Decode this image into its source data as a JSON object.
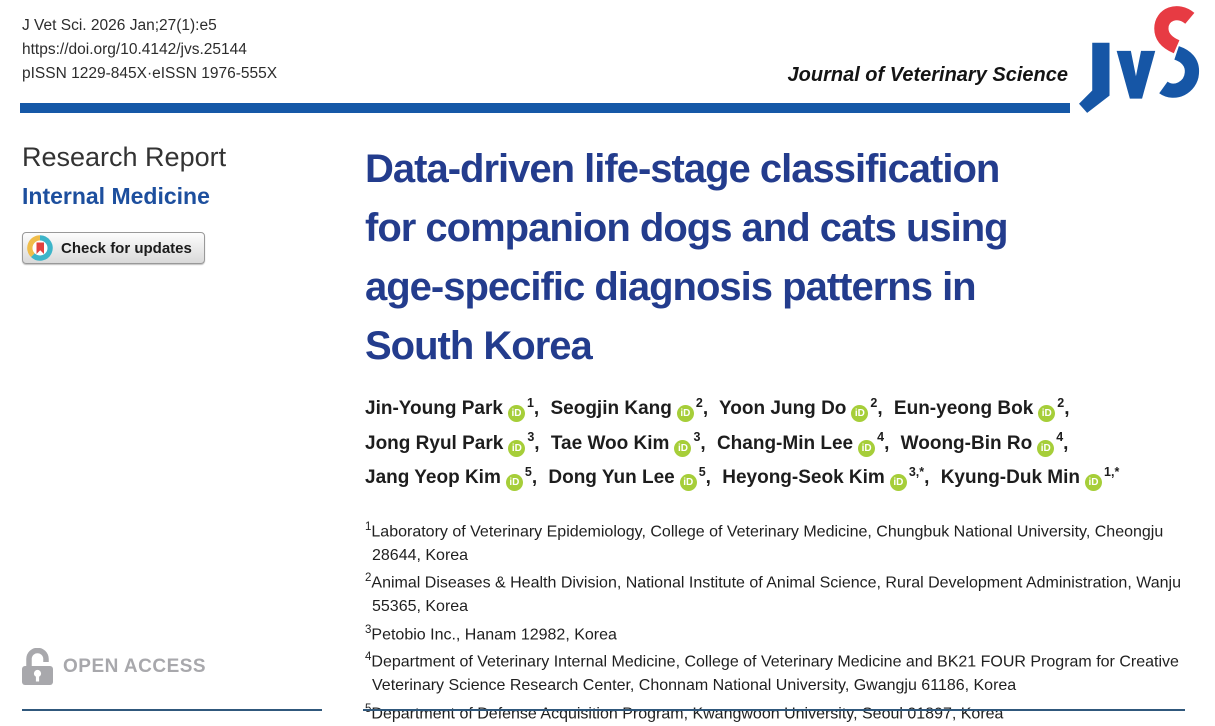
{
  "header": {
    "citation": "J Vet Sci. 2026 Jan;27(1):e5",
    "doi": "https://doi.org/10.4142/jvs.25144",
    "issn": "pISSN 1229-845X·eISSN 1976-555X",
    "journal_name": "Journal of Veterinary Science",
    "logo_text": "JVS"
  },
  "left": {
    "article_type": "Research Report",
    "section": "Internal Medicine",
    "crossmark_label": "Check for updates",
    "open_access_label": "OPEN ACCESS"
  },
  "icons": {
    "orcid_label": "iD"
  },
  "article": {
    "title": "Data-driven life-stage classification for companion dogs and cats using age-specific diagnosis patterns in South Korea",
    "title_lines": [
      "Data-driven life-stage classification",
      "for companion dogs and cats using",
      "age-specific diagnosis patterns in",
      "South Korea"
    ],
    "authors": [
      {
        "name": "Jin-Young Park",
        "sup": "1"
      },
      {
        "name": "Seogjin Kang",
        "sup": "2"
      },
      {
        "name": "Yoon Jung Do",
        "sup": "2"
      },
      {
        "name": "Eun-yeong Bok",
        "sup": "2",
        "break_after": true
      },
      {
        "name": "Jong Ryul Park",
        "sup": "3"
      },
      {
        "name": "Tae Woo Kim",
        "sup": "3"
      },
      {
        "name": "Chang-Min Lee",
        "sup": "4"
      },
      {
        "name": "Woong-Bin Ro",
        "sup": "4",
        "break_after": true
      },
      {
        "name": "Jang Yeop Kim",
        "sup": "5"
      },
      {
        "name": "Dong Yun Lee",
        "sup": "5"
      },
      {
        "name": "Heyong-Seok Kim",
        "sup": "3,*"
      },
      {
        "name": "Kyung-Duk Min",
        "sup": "1,*"
      }
    ],
    "affiliations": [
      {
        "sup": "1",
        "text": "Laboratory of Veterinary Epidemiology, College of Veterinary Medicine, Chungbuk National University, Cheongju 28644, Korea"
      },
      {
        "sup": "2",
        "text": "Animal Diseases & Health Division, National Institute of Animal Science, Rural Development Administration, Wanju 55365, Korea"
      },
      {
        "sup": "3",
        "text": "Petobio Inc., Hanam 12982, Korea"
      },
      {
        "sup": "4",
        "text": "Department of Veterinary Internal Medicine, College of Veterinary Medicine and BK21 FOUR Program for Creative Veterinary Science Research Center, Chonnam National University, Gwangju 61186, Korea"
      },
      {
        "sup": "5",
        "text": "Department of Defense Acquisition Program, Kwangwoon University, Seoul 01897, Korea"
      }
    ]
  },
  "colors": {
    "header_bar": "#1558a7",
    "title_blue": "#233c8d",
    "section_blue": "#1d4f9e",
    "orcid_green": "#a6ce39",
    "logo_blue": "#1656a6",
    "logo_red": "#e73b43",
    "rule_color": "#30587c",
    "crossmark_teal": "#3db5c9",
    "crossmark_yellow": "#f0bd4a",
    "crossmark_red": "#e2413e",
    "open_access_gray": "#a8a8ac"
  }
}
